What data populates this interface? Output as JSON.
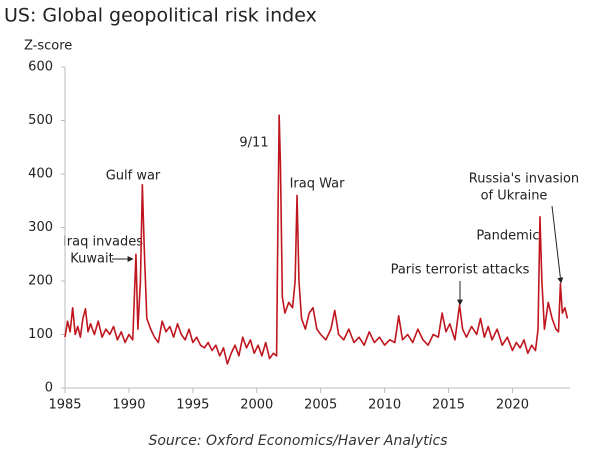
{
  "chart_data": {
    "type": "line",
    "title": "US: Global geopolitical risk index",
    "y_label": "Z-score",
    "source": "Source: Oxford Economics/Haver Analytics",
    "annotations": [
      "Gulf war",
      "Iraq invades",
      "Kuwait",
      "9/11",
      "Iraq War",
      "Paris terrorist attacks",
      "Pandemic",
      "Russia's invasion",
      "of Ukraine"
    ],
    "xlim": [
      1985,
      2024.5
    ],
    "xticks": [
      1985,
      1990,
      1995,
      2000,
      2005,
      2010,
      2015,
      2020
    ],
    "ylim": [
      0,
      600
    ],
    "yticks": [
      0,
      100,
      200,
      300,
      400,
      500,
      600
    ],
    "grid": false,
    "series": [
      {
        "name": "US: Global geopolitical risk index",
        "color": "#c0161f",
        "x": [
          1985.0,
          1985.2,
          1985.4,
          1985.6,
          1985.8,
          1986.0,
          1986.2,
          1986.4,
          1986.6,
          1986.8,
          1987.0,
          1987.3,
          1987.6,
          1987.9,
          1988.2,
          1988.5,
          1988.8,
          1989.1,
          1989.4,
          1989.7,
          1990.0,
          1990.3,
          1990.55,
          1990.7,
          1990.9,
          1991.05,
          1991.2,
          1991.4,
          1991.7,
          1992.0,
          1992.3,
          1992.6,
          1992.9,
          1993.2,
          1993.5,
          1993.8,
          1994.1,
          1994.4,
          1994.7,
          1995.0,
          1995.3,
          1995.6,
          1995.9,
          1996.2,
          1996.5,
          1996.8,
          1997.1,
          1997.4,
          1997.7,
          1998.0,
          1998.3,
          1998.6,
          1998.9,
          1999.2,
          1999.5,
          1999.8,
          2000.1,
          2000.4,
          2000.7,
          2001.0,
          2001.3,
          2001.55,
          2001.65,
          2001.75,
          2001.85,
          2002.0,
          2002.2,
          2002.5,
          2002.8,
          2003.0,
          2003.15,
          2003.3,
          2003.5,
          2003.8,
          2004.1,
          2004.4,
          2004.7,
          2005.0,
          2005.4,
          2005.8,
          2006.1,
          2006.4,
          2006.8,
          2007.2,
          2007.6,
          2008.0,
          2008.4,
          2008.8,
          2009.2,
          2009.6,
          2010.0,
          2010.4,
          2010.8,
          2011.1,
          2011.4,
          2011.8,
          2012.2,
          2012.6,
          2013.0,
          2013.4,
          2013.8,
          2014.2,
          2014.5,
          2014.8,
          2015.1,
          2015.5,
          2015.86,
          2016.1,
          2016.4,
          2016.8,
          2017.2,
          2017.5,
          2017.8,
          2018.1,
          2018.4,
          2018.8,
          2019.2,
          2019.6,
          2020.0,
          2020.3,
          2020.6,
          2020.9,
          2021.2,
          2021.5,
          2021.8,
          2022.0,
          2022.15,
          2022.3,
          2022.5,
          2022.8,
          2023.1,
          2023.4,
          2023.6,
          2023.75,
          2023.9,
          2024.1,
          2024.3
        ],
        "values": [
          95,
          125,
          105,
          150,
          100,
          115,
          95,
          130,
          148,
          105,
          120,
          100,
          125,
          95,
          110,
          100,
          115,
          90,
          105,
          85,
          100,
          90,
          250,
          110,
          200,
          380,
          260,
          130,
          110,
          95,
          85,
          125,
          105,
          115,
          95,
          120,
          100,
          90,
          110,
          85,
          95,
          80,
          75,
          85,
          70,
          80,
          60,
          75,
          45,
          65,
          80,
          60,
          95,
          75,
          90,
          65,
          80,
          60,
          85,
          55,
          65,
          60,
          300,
          510,
          420,
          170,
          140,
          160,
          150,
          200,
          360,
          200,
          130,
          110,
          140,
          150,
          110,
          100,
          90,
          110,
          145,
          100,
          90,
          110,
          85,
          95,
          80,
          105,
          85,
          95,
          80,
          90,
          85,
          135,
          90,
          100,
          85,
          110,
          90,
          80,
          100,
          95,
          140,
          105,
          120,
          90,
          155,
          110,
          95,
          115,
          100,
          130,
          95,
          115,
          90,
          110,
          80,
          95,
          70,
          85,
          75,
          90,
          65,
          80,
          70,
          110,
          320,
          200,
          110,
          160,
          130,
          110,
          105,
          195,
          140,
          150,
          130
        ]
      }
    ]
  }
}
